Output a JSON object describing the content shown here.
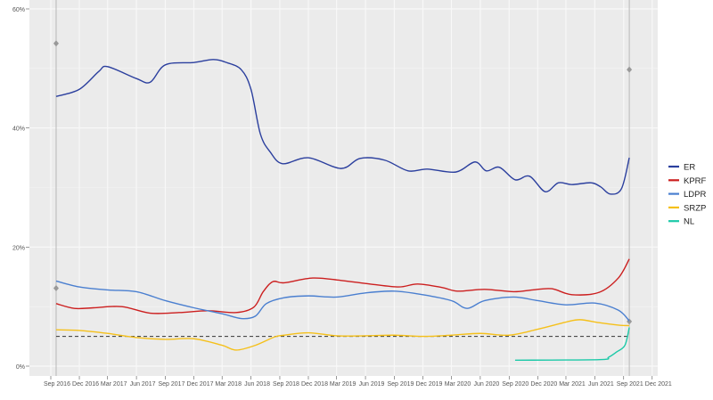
{
  "chart_data": {
    "type": "line",
    "title": "",
    "xlabel": "",
    "ylabel": "",
    "ylim": [
      0,
      60
    ],
    "xlim": [
      "2016-09-01",
      "2021-12-01"
    ],
    "grid": true,
    "legend_placement": "right",
    "y_ticks": [
      {
        "v": 0,
        "label": "0%"
      },
      {
        "v": 20,
        "label": "20%"
      },
      {
        "v": 40,
        "label": "40%"
      },
      {
        "v": 60,
        "label": "60%"
      }
    ],
    "x_ticks": [
      {
        "d": "2016-09-01",
        "label": "Sep 2016"
      },
      {
        "d": "2016-12-01",
        "label": "Dec 2016"
      },
      {
        "d": "2017-03-01",
        "label": "Mar 2017"
      },
      {
        "d": "2017-06-01",
        "label": "Jun 2017"
      },
      {
        "d": "2017-09-01",
        "label": "Sep 2017"
      },
      {
        "d": "2017-12-01",
        "label": "Dec 2017"
      },
      {
        "d": "2018-03-01",
        "label": "Mar 2018"
      },
      {
        "d": "2018-06-01",
        "label": "Jun 2018"
      },
      {
        "d": "2018-09-01",
        "label": "Sep 2018"
      },
      {
        "d": "2018-12-01",
        "label": "Dec 2018"
      },
      {
        "d": "2019-03-01",
        "label": "Mar 2019"
      },
      {
        "d": "2019-06-01",
        "label": "Jun 2019"
      },
      {
        "d": "2019-09-01",
        "label": "Sep 2019"
      },
      {
        "d": "2019-12-01",
        "label": "Dec 2019"
      },
      {
        "d": "2020-03-01",
        "label": "Mar 2020"
      },
      {
        "d": "2020-06-01",
        "label": "Jun 2020"
      },
      {
        "d": "2020-09-01",
        "label": "Sep 2020"
      },
      {
        "d": "2020-12-01",
        "label": "Dec 2020"
      },
      {
        "d": "2021-03-01",
        "label": "Mar 2021"
      },
      {
        "d": "2021-06-01",
        "label": "Jun 2021"
      },
      {
        "d": "2021-09-01",
        "label": "Sep 2021"
      },
      {
        "d": "2021-12-01",
        "label": "Dec 2021"
      }
    ],
    "threshold": 5,
    "elections": [
      {
        "date": "2016-09-18",
        "results": [
          54.2,
          13.1
        ]
      },
      {
        "date": "2021-09-19",
        "results": [
          49.8,
          7.5
        ]
      }
    ],
    "series": [
      {
        "name": "ER",
        "color": "#2b3f9e",
        "points": [
          [
            "2016-09-18",
            45.3
          ],
          [
            "2016-12-01",
            46.5
          ],
          [
            "2017-02-01",
            49.5
          ],
          [
            "2017-03-01",
            50.3
          ],
          [
            "2017-06-01",
            48.3
          ],
          [
            "2017-07-15",
            47.7
          ],
          [
            "2017-09-01",
            50.6
          ],
          [
            "2017-12-01",
            51.0
          ],
          [
            "2018-02-01",
            51.5
          ],
          [
            "2018-03-15",
            51.0
          ],
          [
            "2018-05-01",
            49.8
          ],
          [
            "2018-06-01",
            46.5
          ],
          [
            "2018-07-01",
            39.0
          ],
          [
            "2018-08-01",
            36.0
          ],
          [
            "2018-09-10",
            34.0
          ],
          [
            "2018-12-01",
            35.0
          ],
          [
            "2019-03-15",
            33.2
          ],
          [
            "2019-05-15",
            34.9
          ],
          [
            "2019-08-01",
            34.6
          ],
          [
            "2019-10-15",
            32.8
          ],
          [
            "2019-12-15",
            33.1
          ],
          [
            "2020-03-15",
            32.6
          ],
          [
            "2020-05-15",
            34.3
          ],
          [
            "2020-06-20",
            32.8
          ],
          [
            "2020-08-01",
            33.4
          ],
          [
            "2020-09-20",
            31.3
          ],
          [
            "2020-11-05",
            31.9
          ],
          [
            "2020-12-25",
            29.3
          ],
          [
            "2021-02-05",
            30.8
          ],
          [
            "2021-03-20",
            30.5
          ],
          [
            "2021-05-20",
            30.8
          ],
          [
            "2021-06-20",
            30.1
          ],
          [
            "2021-07-20",
            28.9
          ],
          [
            "2021-08-25",
            29.8
          ],
          [
            "2021-09-19",
            35.0
          ]
        ]
      },
      {
        "name": "KPRF",
        "color": "#cc1f1f",
        "points": [
          [
            "2016-09-18",
            10.5
          ],
          [
            "2016-11-15",
            9.7
          ],
          [
            "2017-01-15",
            9.8
          ],
          [
            "2017-04-15",
            10.0
          ],
          [
            "2017-07-15",
            8.9
          ],
          [
            "2017-10-15",
            9.0
          ],
          [
            "2018-01-15",
            9.3
          ],
          [
            "2018-04-15",
            9.0
          ],
          [
            "2018-06-10",
            9.9
          ],
          [
            "2018-07-10",
            12.5
          ],
          [
            "2018-08-10",
            14.2
          ],
          [
            "2018-09-15",
            14.0
          ],
          [
            "2018-12-15",
            14.8
          ],
          [
            "2019-03-15",
            14.4
          ],
          [
            "2019-06-15",
            13.8
          ],
          [
            "2019-09-15",
            13.3
          ],
          [
            "2019-11-15",
            13.8
          ],
          [
            "2020-02-01",
            13.2
          ],
          [
            "2020-03-20",
            12.6
          ],
          [
            "2020-06-15",
            12.9
          ],
          [
            "2020-09-15",
            12.5
          ],
          [
            "2020-11-15",
            12.8
          ],
          [
            "2021-01-15",
            13.0
          ],
          [
            "2021-03-20",
            12.0
          ],
          [
            "2021-06-15",
            12.4
          ],
          [
            "2021-08-15",
            14.8
          ],
          [
            "2021-09-19",
            18.0
          ]
        ]
      },
      {
        "name": "LDPR",
        "color": "#4a7fd0",
        "points": [
          [
            "2016-09-18",
            14.3
          ],
          [
            "2016-12-01",
            13.3
          ],
          [
            "2017-03-01",
            12.8
          ],
          [
            "2017-06-01",
            12.5
          ],
          [
            "2017-09-01",
            11.0
          ],
          [
            "2017-12-01",
            9.8
          ],
          [
            "2018-03-01",
            8.8
          ],
          [
            "2018-05-01",
            8.0
          ],
          [
            "2018-06-15",
            8.4
          ],
          [
            "2018-07-20",
            10.5
          ],
          [
            "2018-09-15",
            11.5
          ],
          [
            "2018-12-01",
            11.8
          ],
          [
            "2019-03-01",
            11.6
          ],
          [
            "2019-06-01",
            12.3
          ],
          [
            "2019-09-01",
            12.6
          ],
          [
            "2019-12-01",
            12.0
          ],
          [
            "2020-03-01",
            11.0
          ],
          [
            "2020-04-20",
            9.7
          ],
          [
            "2020-06-15",
            11.0
          ],
          [
            "2020-09-15",
            11.6
          ],
          [
            "2020-12-01",
            11.0
          ],
          [
            "2021-03-01",
            10.3
          ],
          [
            "2021-06-01",
            10.6
          ],
          [
            "2021-08-15",
            9.4
          ],
          [
            "2021-09-19",
            7.6
          ]
        ]
      },
      {
        "name": "SRZP",
        "color": "#f5c01a",
        "points": [
          [
            "2016-09-18",
            6.1
          ],
          [
            "2016-12-01",
            6.0
          ],
          [
            "2017-03-01",
            5.5
          ],
          [
            "2017-06-01",
            4.8
          ],
          [
            "2017-09-01",
            4.5
          ],
          [
            "2017-12-01",
            4.6
          ],
          [
            "2018-03-01",
            3.5
          ],
          [
            "2018-04-15",
            2.7
          ],
          [
            "2018-06-15",
            3.5
          ],
          [
            "2018-08-15",
            4.9
          ],
          [
            "2018-09-15",
            5.2
          ],
          [
            "2018-12-01",
            5.6
          ],
          [
            "2019-03-01",
            5.1
          ],
          [
            "2019-06-01",
            5.1
          ],
          [
            "2019-09-01",
            5.2
          ],
          [
            "2019-12-01",
            5.0
          ],
          [
            "2020-03-01",
            5.2
          ],
          [
            "2020-06-01",
            5.5
          ],
          [
            "2020-09-01",
            5.2
          ],
          [
            "2020-12-01",
            6.2
          ],
          [
            "2021-03-01",
            7.4
          ],
          [
            "2021-04-15",
            7.8
          ],
          [
            "2021-06-15",
            7.3
          ],
          [
            "2021-08-15",
            6.9
          ],
          [
            "2021-09-19",
            6.8
          ]
        ]
      },
      {
        "name": "NL",
        "color": "#1cc9a8",
        "points": [
          [
            "2020-09-20",
            1.0
          ],
          [
            "2021-06-15",
            1.1
          ],
          [
            "2021-07-15",
            1.5
          ],
          [
            "2021-08-10",
            2.4
          ],
          [
            "2021-09-05",
            3.5
          ],
          [
            "2021-09-19",
            6.5
          ]
        ]
      }
    ]
  }
}
